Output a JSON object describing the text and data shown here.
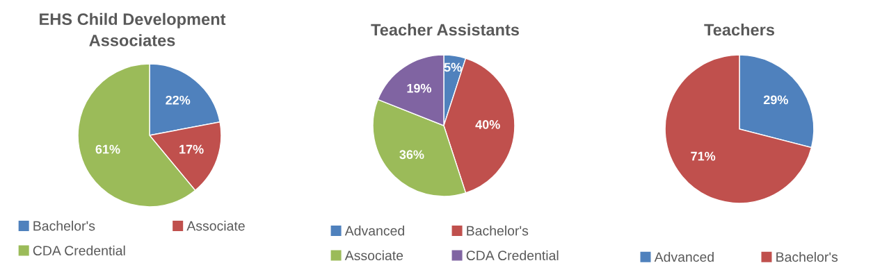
{
  "chart_data": [
    {
      "type": "pie",
      "title": "EHS Child Development\nAssociates",
      "categories": [
        "Bachelor's",
        "Associate",
        "CDA Credential"
      ],
      "values": [
        22,
        17,
        61
      ],
      "value_labels": [
        "22%",
        "17%",
        "61%"
      ],
      "colors": [
        "#4f81bd",
        "#c0504d",
        "#9bbb59"
      ],
      "legend": "bottom"
    },
    {
      "type": "pie",
      "title": "Teacher Assistants",
      "categories": [
        "Advanced",
        "Bachelor's",
        "Associate",
        "CDA Credential"
      ],
      "values": [
        5,
        40,
        36,
        19
      ],
      "value_labels": [
        "5%",
        "40%",
        "36%",
        "19%"
      ],
      "colors": [
        "#4f81bd",
        "#c0504d",
        "#9bbb59",
        "#8064a2"
      ],
      "legend": "bottom"
    },
    {
      "type": "pie",
      "title": "Teachers",
      "categories": [
        "Advanced",
        "Bachelor's"
      ],
      "values": [
        29,
        71
      ],
      "value_labels": [
        "29%",
        "71%"
      ],
      "colors": [
        "#4f81bd",
        "#c0504d"
      ],
      "legend": "bottom"
    }
  ]
}
